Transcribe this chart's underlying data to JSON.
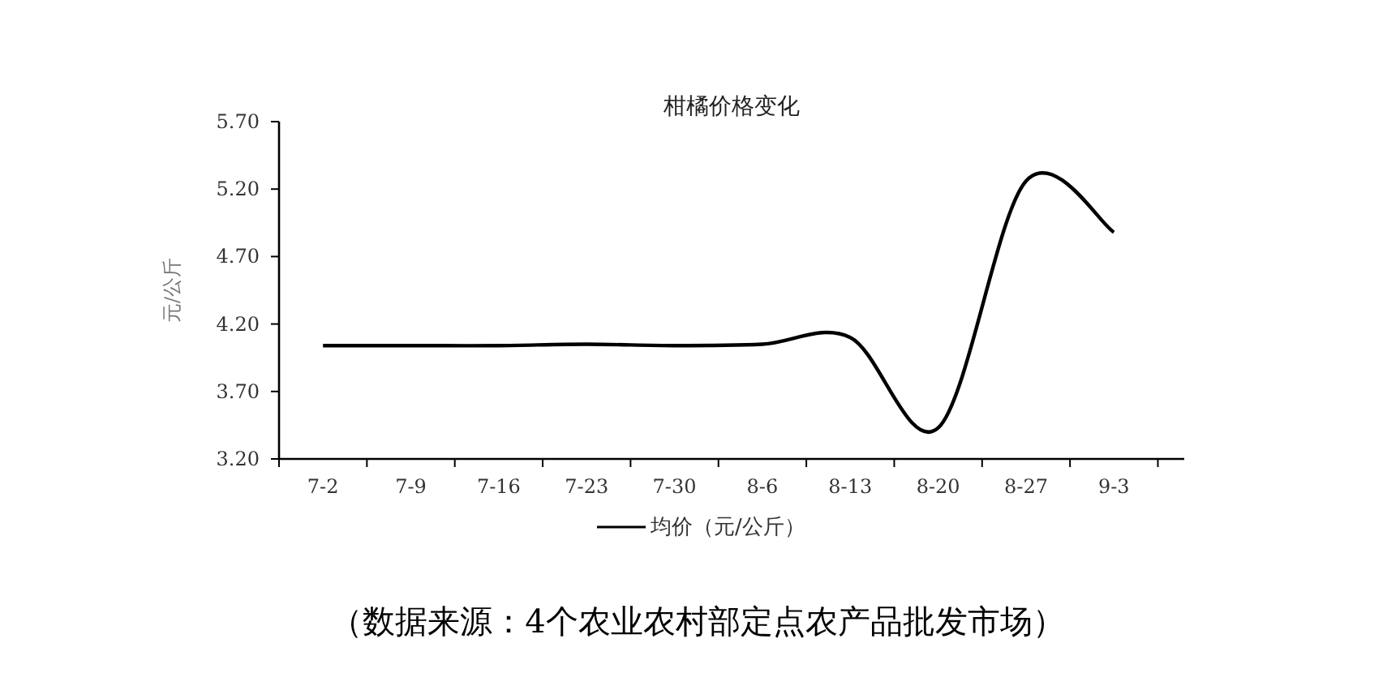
{
  "chart_data": {
    "type": "line",
    "title": "柑橘价格变化",
    "ylabel": "元/公斤",
    "categories": [
      "7-2",
      "7-9",
      "7-16",
      "7-23",
      "7-30",
      "8-6",
      "8-13",
      "8-20",
      "8-27",
      "9-3"
    ],
    "series": [
      {
        "name": "均价（元/公斤）",
        "color": "#000000",
        "values": [
          4.04,
          4.04,
          4.04,
          4.05,
          4.04,
          4.05,
          4.1,
          3.43,
          5.26,
          4.88
        ]
      }
    ],
    "ylim": [
      3.2,
      5.7
    ],
    "yticks": [
      {
        "value": 3.2,
        "label": "3.20"
      },
      {
        "value": 3.7,
        "label": "3.70"
      },
      {
        "value": 4.2,
        "label": "4.20"
      },
      {
        "value": 4.7,
        "label": "4.70"
      },
      {
        "value": 5.2,
        "label": "5.20"
      },
      {
        "value": 5.7,
        "label": "5.70"
      }
    ],
    "legend": "bottom",
    "grid": false,
    "marker": "none",
    "line_style": "solid",
    "annotations": [
      "（数据来源：4个农业农村部定点农产品批发市场）"
    ]
  }
}
